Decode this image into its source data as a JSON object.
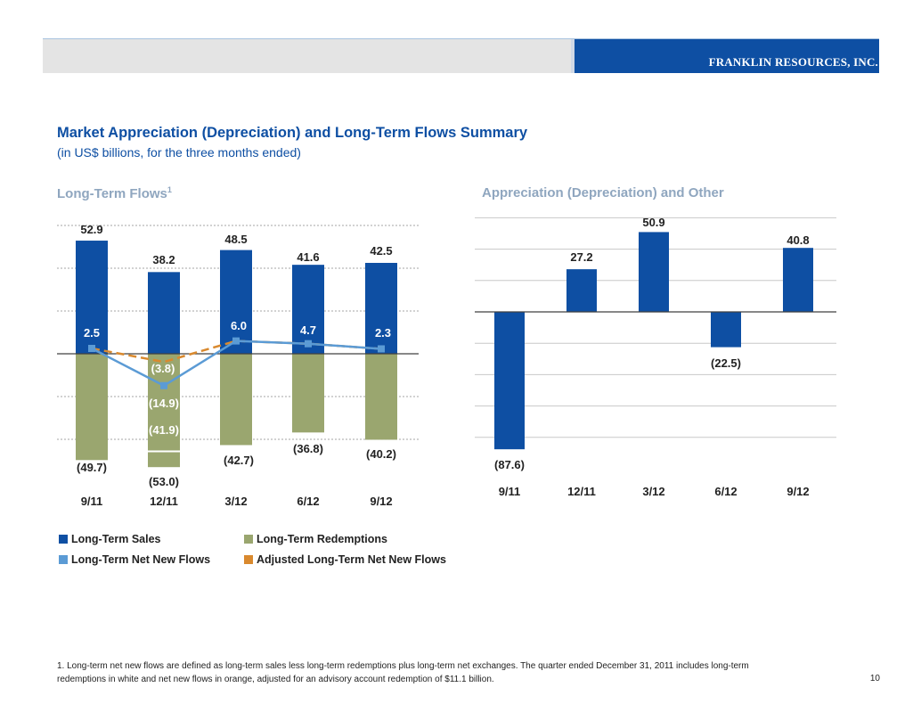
{
  "header": {
    "company": "FRANKLIN RESOURCES, INC."
  },
  "title": "Market Appreciation (Depreciation) and Long-Term Flows Summary",
  "subtitle": "(in US$ billions, for the three months ended)",
  "colors": {
    "sales": "#0e4fa3",
    "redemptions": "#9aa66f",
    "net": "#5b9bd5",
    "adjusted": "#d9892e",
    "grid": "#a6a6a6"
  },
  "chart_data": [
    {
      "type": "bar",
      "title": "Long-Term Flows",
      "title_superscript": "1",
      "categories": [
        "9/11",
        "12/11",
        "3/12",
        "6/12",
        "9/12"
      ],
      "series": [
        {
          "name": "Long-Term Sales",
          "type": "bar",
          "values": [
            52.9,
            38.2,
            48.5,
            41.6,
            42.5
          ],
          "labels": [
            "52.9",
            "38.2",
            "48.5",
            "41.6",
            "42.5"
          ]
        },
        {
          "name": "Long-Term Redemptions",
          "type": "bar",
          "values": [
            -49.7,
            -53.0,
            -42.7,
            -36.8,
            -40.2
          ],
          "labels": [
            "(49.7)",
            "(53.0)",
            "(42.7)",
            "(36.8)",
            "(40.2)"
          ]
        },
        {
          "name": "Long-Term Net New Flows",
          "type": "line",
          "values": [
            2.5,
            -14.9,
            6.0,
            4.7,
            2.3
          ],
          "labels": [
            "2.5",
            "(14.9)",
            "6.0",
            "4.7",
            "2.3"
          ]
        },
        {
          "name": "Adjusted Long-Term Net New Flows",
          "type": "line",
          "values": [
            2.5,
            -3.8,
            6.0,
            4.7,
            2.3
          ],
          "labels": [
            "(3.8)"
          ]
        }
      ],
      "annotations": [
        {
          "category": "12/11",
          "text": "(41.9)",
          "note": "redemptions in white"
        }
      ],
      "ylim": [
        -60,
        60
      ],
      "grid": true
    },
    {
      "type": "bar",
      "title": "Appreciation (Depreciation) and Other",
      "categories": [
        "9/11",
        "12/11",
        "3/12",
        "6/12",
        "9/12"
      ],
      "values": [
        -87.6,
        27.2,
        50.9,
        -22.5,
        40.8
      ],
      "labels": [
        "(87.6)",
        "27.2",
        "50.9",
        "(22.5)",
        "40.8"
      ],
      "ylim": [
        -100,
        60
      ],
      "grid": true
    }
  ],
  "legend": [
    {
      "label": "Long-Term Sales",
      "color": "#0e4fa3"
    },
    {
      "label": "Long-Term Redemptions",
      "color": "#9aa66f"
    },
    {
      "label": "Long-Term Net New Flows",
      "color": "#5b9bd5"
    },
    {
      "label": "Adjusted Long-Term Net New Flows",
      "color": "#d9892e"
    }
  ],
  "footnote": "1. Long-term net new flows are defined as long-term sales less long-term redemptions plus long-term net exchanges. The quarter ended December 31, 2011 includes long-term redemptions in white and net new flows in orange, adjusted for an advisory account redemption of $11.1 billion.",
  "page_number": "10"
}
